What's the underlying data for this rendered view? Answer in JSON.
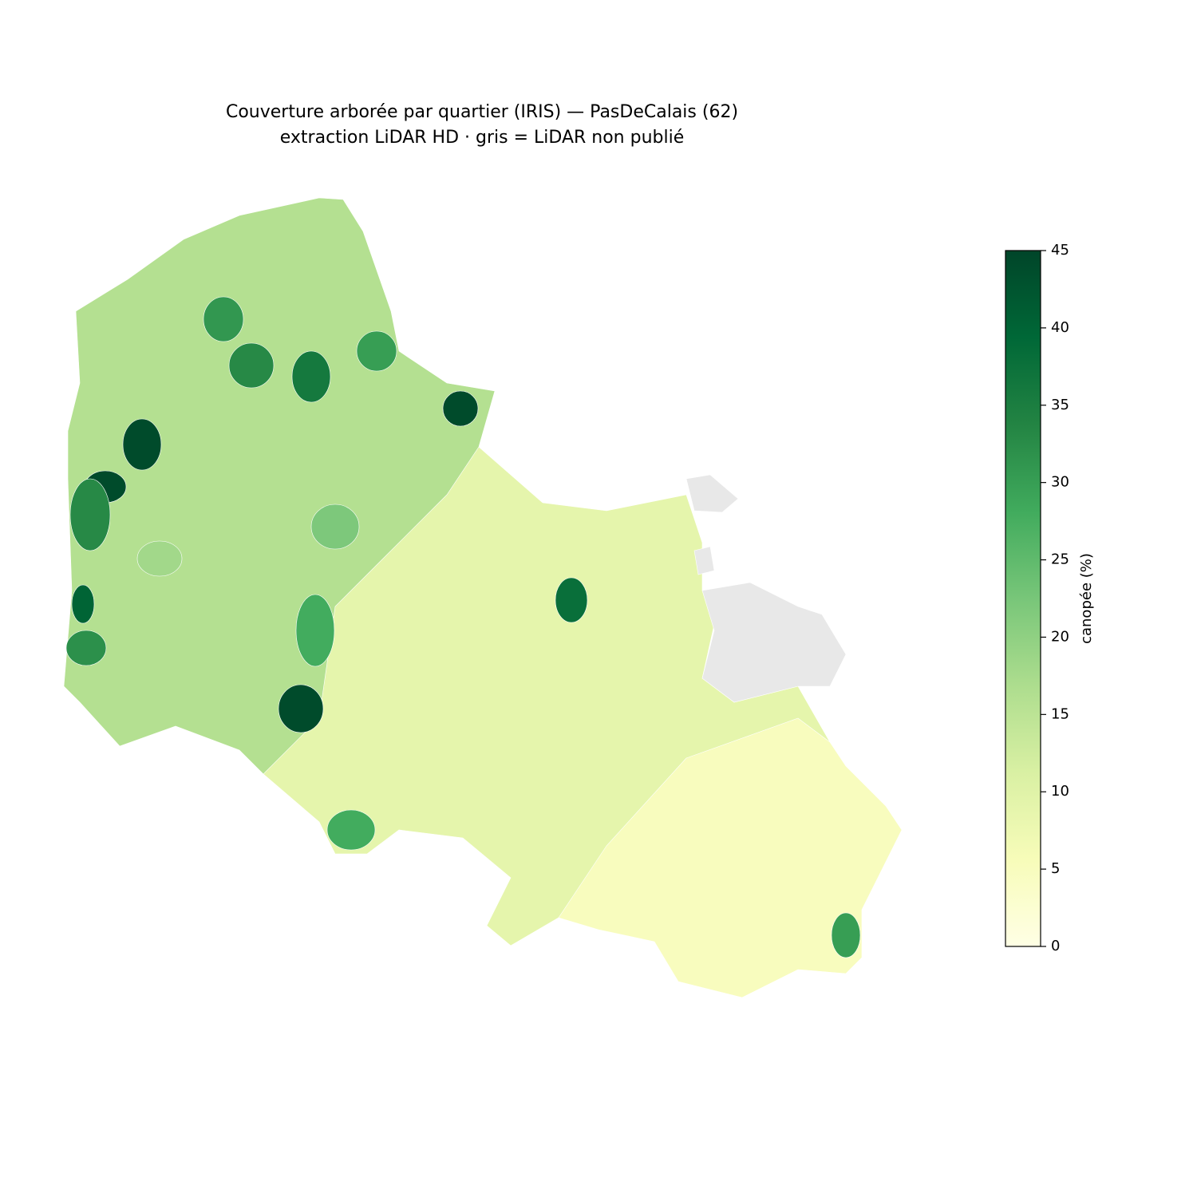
{
  "chart_data": {
    "type": "choropleth",
    "title": "Couverture arborée par quartier (IRIS) — PasDeCalais (62)",
    "subtitle": "extraction LiDAR HD · gris = LiDAR non publié",
    "colorbar_label": "canopée (%)",
    "clim": [
      0,
      45
    ],
    "cticks": [
      0,
      5,
      10,
      15,
      20,
      25,
      30,
      35,
      40,
      45
    ],
    "colorscale": [
      "#ffffe5",
      "#f7fcb9",
      "#d9f0a3",
      "#addd8e",
      "#78c679",
      "#41ab5d",
      "#238443",
      "#006837",
      "#004529"
    ],
    "no_data_color": "#e8e8e8",
    "values": [
      9,
      16,
      5,
      44,
      44,
      40,
      44,
      44,
      36,
      33,
      30,
      33,
      32,
      28,
      28,
      30,
      38,
      31,
      22,
      18
    ]
  }
}
